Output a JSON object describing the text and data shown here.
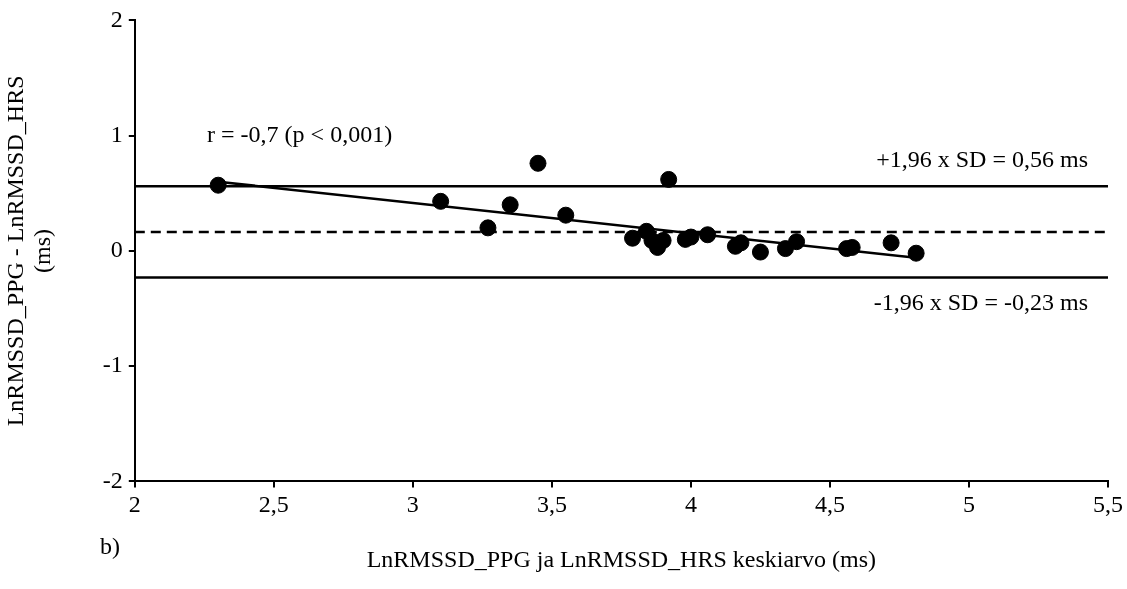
{
  "chart_data": {
    "type": "scatter",
    "xlabel": "LnRMSSD_PPG ja LnRMSSD_HRS keskiarvo (ms)",
    "ylabel": "LnRMSSD_PPG - LnRMSSD_HRS (ms)",
    "xlim": [
      2,
      5.5
    ],
    "xticks": [
      2,
      {
        "value": 2.5,
        "label": "2,5"
      },
      3,
      {
        "value": 3.5,
        "label": "3,5"
      },
      4,
      {
        "value": 4.5,
        "label": "4,5"
      },
      5,
      {
        "value": 5.5,
        "label": "5,5"
      }
    ],
    "ylim": [
      -2,
      2
    ],
    "yticks": [
      -2,
      -1,
      0,
      1,
      2
    ],
    "grid": false,
    "legend": false,
    "marker": "circle",
    "series": [
      {
        "type": "scatter",
        "color": "#000000",
        "x": [
          2.3,
          3.1,
          3.27,
          3.35,
          3.45,
          3.55,
          3.92,
          3.79,
          3.84,
          3.86,
          3.88,
          3.9,
          3.98,
          4.0,
          4.06,
          4.16,
          4.18,
          4.25,
          4.34,
          4.38,
          4.56,
          4.58,
          4.72,
          4.81
        ],
        "values": [
          0.57,
          0.43,
          0.2,
          0.4,
          0.76,
          0.31,
          0.62,
          0.11,
          0.17,
          0.09,
          0.03,
          0.09,
          0.1,
          0.12,
          0.14,
          0.04,
          0.07,
          -0.01,
          0.02,
          0.08,
          0.02,
          0.03,
          0.07,
          -0.02
        ]
      },
      {
        "type": "line",
        "color": "#000000",
        "marker": "none",
        "x": [
          2.3,
          4.81
        ],
        "values": [
          0.6,
          -0.06
        ]
      }
    ],
    "ref_lines": [
      {
        "axis": "y",
        "value": 0.56,
        "label": "+1,96 x SD = 0,56 ms",
        "color": "#000000",
        "line_style": "solid"
      },
      {
        "axis": "y",
        "value": 0.165,
        "label": null,
        "color": "#000000",
        "line_style": "dashed"
      },
      {
        "axis": "y",
        "value": -0.23,
        "label": "-1,96 x SD = -0,23 ms",
        "color": "#000000",
        "line_style": "solid"
      }
    ],
    "annotations": [
      "r = -0,7 (p < 0,001)",
      "b)"
    ]
  }
}
